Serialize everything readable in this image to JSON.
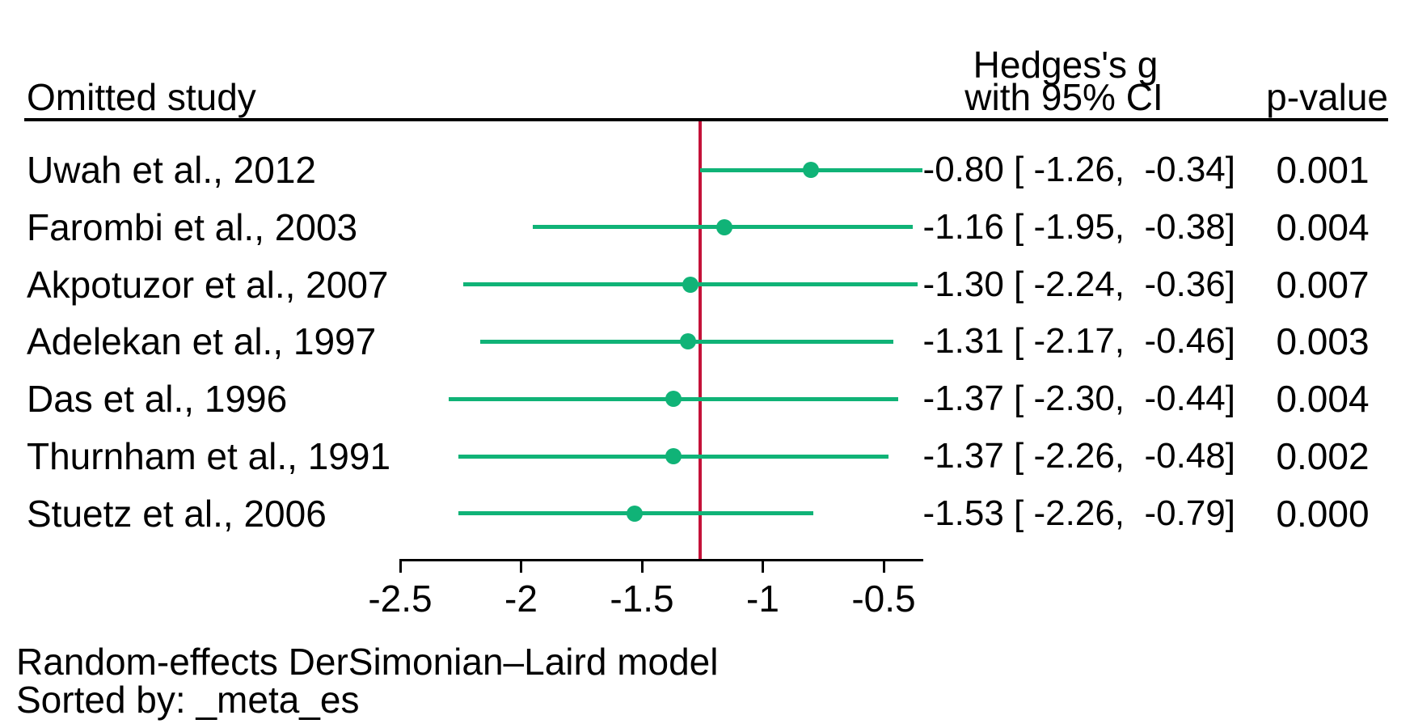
{
  "header": {
    "omitted_study": "Omitted study",
    "effect_col_line1": "Hedges's g",
    "effect_col_line2": "with 95% CI",
    "p_value_col": "p-value"
  },
  "footer": {
    "line1": "Random-effects DerSimonian–Laird model",
    "line2": "Sorted by: _meta_es"
  },
  "colors": {
    "marker_green": "#10b377",
    "reference_red": "#c41239",
    "axis_black": "#000000"
  },
  "chart_data": {
    "type": "scatter",
    "subtype": "leave-one-out forest plot (meta-analysis sensitivity)",
    "title": "",
    "xlabel": "",
    "ylabel": "",
    "effect_measure": "Hedges's g",
    "x_ticks": [
      -2.5,
      -2,
      -1.5,
      -1,
      -0.5
    ],
    "x_tick_labels": [
      "-2.5",
      "-2",
      "-1.5",
      "-1",
      "-0.5"
    ],
    "xlim": [
      -2.5,
      -0.34
    ],
    "reference_line_x": -1.26,
    "grid": false,
    "legend": false,
    "columns": [
      "Omitted study",
      "Hedges's g with 95% CI",
      "p-value"
    ],
    "studies": [
      {
        "label": "Uwah et al., 2012",
        "effect": -0.8,
        "ci_lower": -1.26,
        "ci_upper": -0.34,
        "display": "-0.80 [ -1.26,  -0.34]",
        "p_value": "0.001"
      },
      {
        "label": "Farombi et al., 2003",
        "effect": -1.16,
        "ci_lower": -1.95,
        "ci_upper": -0.38,
        "display": "-1.16 [ -1.95,  -0.38]",
        "p_value": "0.004"
      },
      {
        "label": "Akpotuzor et al., 2007",
        "effect": -1.3,
        "ci_lower": -2.24,
        "ci_upper": -0.36,
        "display": "-1.30 [ -2.24,  -0.36]",
        "p_value": "0.007"
      },
      {
        "label": "Adelekan et al., 1997",
        "effect": -1.31,
        "ci_lower": -2.17,
        "ci_upper": -0.46,
        "display": "-1.31 [ -2.17,  -0.46]",
        "p_value": "0.003"
      },
      {
        "label": "Das et al., 1996",
        "effect": -1.37,
        "ci_lower": -2.3,
        "ci_upper": -0.44,
        "display": "-1.37 [ -2.30,  -0.44]",
        "p_value": "0.004"
      },
      {
        "label": "Thurnham et al., 1991",
        "effect": -1.37,
        "ci_lower": -2.26,
        "ci_upper": -0.48,
        "display": "-1.37 [ -2.26,  -0.48]",
        "p_value": "0.002"
      },
      {
        "label": "Stuetz et al., 2006",
        "effect": -1.53,
        "ci_lower": -2.26,
        "ci_upper": -0.79,
        "display": "-1.53 [ -2.26,  -0.79]",
        "p_value": "0.000"
      }
    ],
    "footnotes": [
      "Random-effects DerSimonian–Laird model",
      "Sorted by: _meta_es"
    ]
  }
}
